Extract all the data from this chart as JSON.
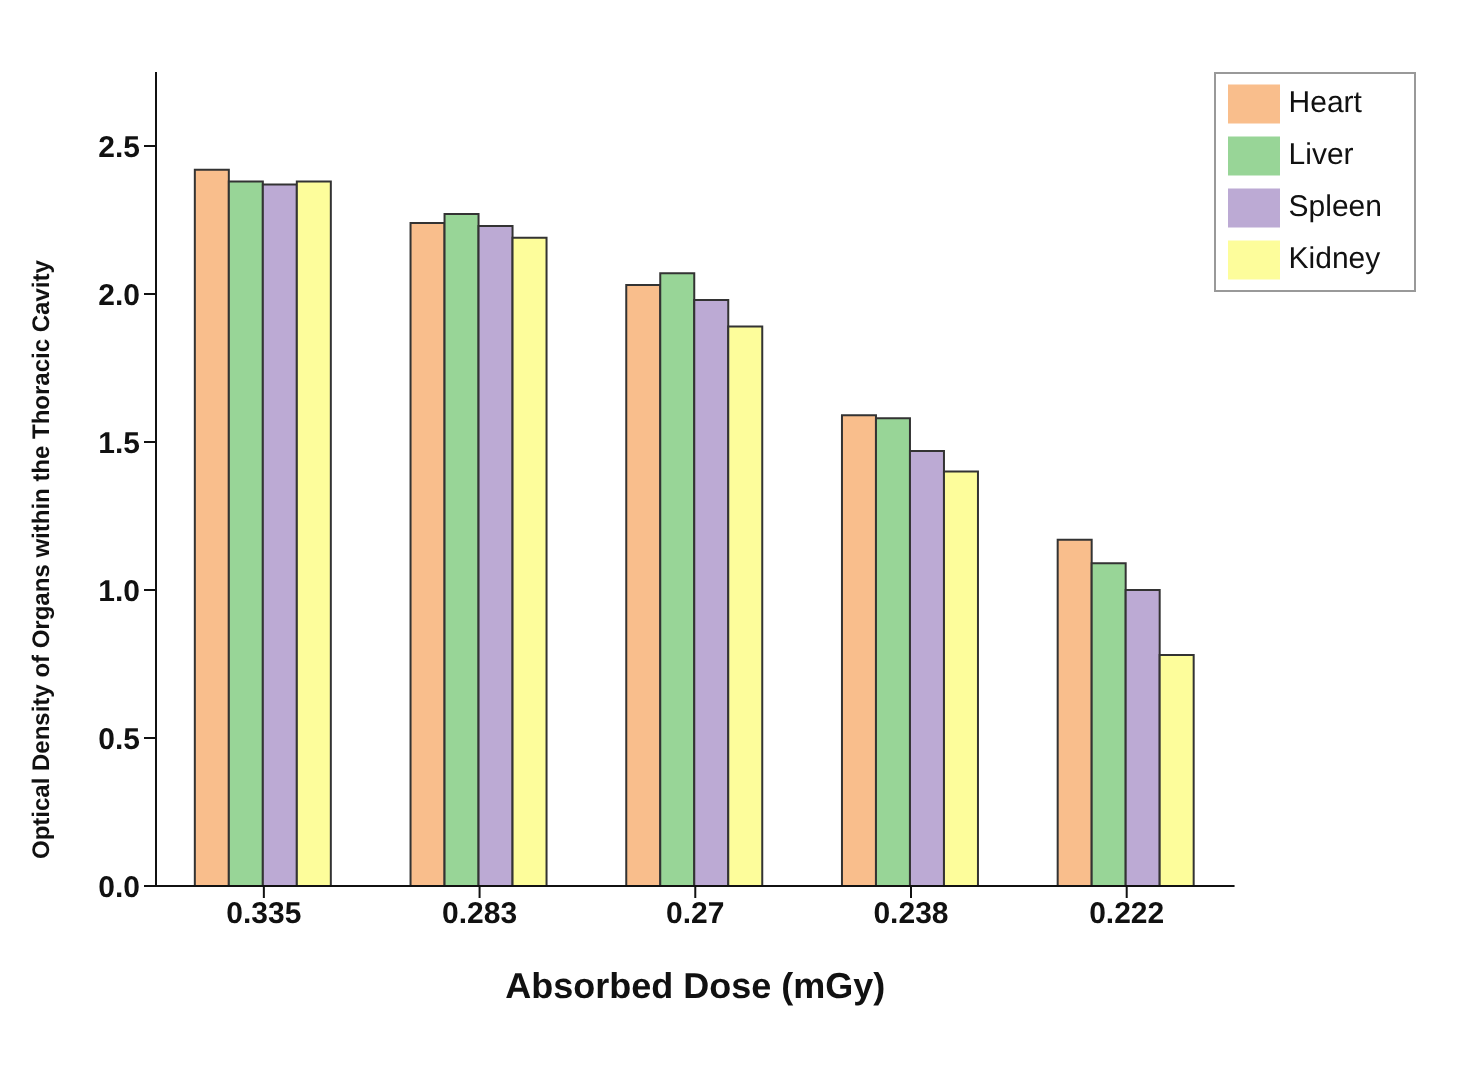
{
  "chart_data": {
    "type": "bar",
    "xlabel": "Absorbed Dose (mGy)",
    "ylabel": "Optical Density of Organs within the Thoracic Cavity",
    "categories": [
      "0.335",
      "0.283",
      "0.27",
      "0.238",
      "0.222"
    ],
    "series": [
      {
        "name": "Heart",
        "color": "#f9be8c",
        "values": [
          2.42,
          2.24,
          2.03,
          1.59,
          1.17
        ]
      },
      {
        "name": "Liver",
        "color": "#98d597",
        "values": [
          2.38,
          2.27,
          2.07,
          1.58,
          1.09
        ]
      },
      {
        "name": "Spleen",
        "color": "#bcaad4",
        "values": [
          2.37,
          2.23,
          1.98,
          1.47,
          1.0
        ]
      },
      {
        "name": "Kidney",
        "color": "#fdfd9b",
        "values": [
          2.38,
          2.19,
          1.89,
          1.4,
          0.78
        ]
      }
    ],
    "ylim": [
      0,
      2.75
    ],
    "yticks": [
      {
        "value": 0,
        "label": "0.0"
      },
      {
        "value": 0.5,
        "label": "0.5"
      },
      {
        "value": 1,
        "label": "1.0"
      },
      {
        "value": 1.5,
        "label": "1.5"
      },
      {
        "value": 2,
        "label": "2.0"
      },
      {
        "value": 2.5,
        "label": "2.5"
      }
    ],
    "grid": false,
    "legend": "top right"
  }
}
